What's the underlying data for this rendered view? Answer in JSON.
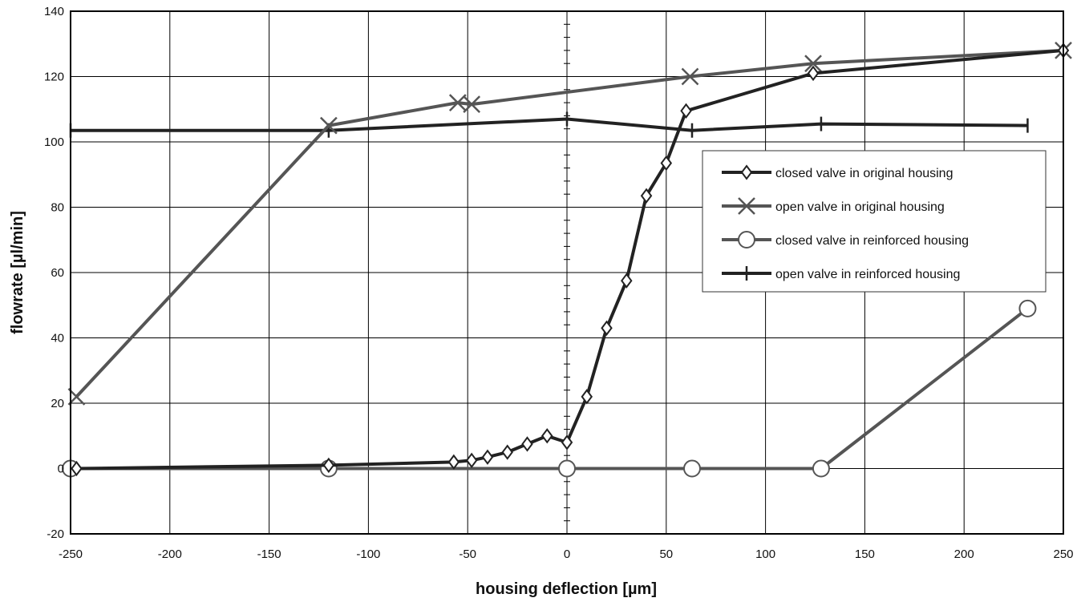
{
  "chart_data": {
    "type": "line",
    "title": "",
    "xlabel": "housing deflection [µm]",
    "ylabel": "flowrate [µl/min]",
    "xlim": [
      -250,
      250
    ],
    "ylim": [
      -20,
      140
    ],
    "xticks": [
      -250,
      -200,
      -150,
      -100,
      -50,
      0,
      50,
      100,
      150,
      200,
      250
    ],
    "yticks": [
      -20,
      0,
      20,
      40,
      60,
      80,
      100,
      120,
      140
    ],
    "xtick_labels": [
      "-250",
      "-200",
      "-150",
      "-100",
      "-50",
      "0",
      "50",
      "100",
      "150",
      "200",
      "250"
    ],
    "ytick_labels": [
      "-20",
      "0",
      "20",
      "40",
      "60",
      "80",
      "100",
      "120",
      "140"
    ],
    "grid": true,
    "legend_position": "right",
    "series": [
      {
        "name": "closed valve in original housing",
        "marker": "diamond",
        "color": "#222222",
        "points": [
          [
            -247,
            0
          ],
          [
            -120,
            1
          ],
          [
            -57,
            2
          ],
          [
            -48,
            2.5
          ],
          [
            -40,
            3.5
          ],
          [
            -30,
            5
          ],
          [
            -20,
            7.5
          ],
          [
            -10,
            10
          ],
          [
            0,
            8
          ],
          [
            10,
            22
          ],
          [
            20,
            43
          ],
          [
            30,
            57.5
          ],
          [
            40,
            83.5
          ],
          [
            50,
            93.5
          ],
          [
            60,
            109.5
          ],
          [
            124,
            121
          ],
          [
            250,
            128
          ]
        ]
      },
      {
        "name": "open valve in original housing",
        "marker": "x",
        "color": "#555555",
        "points": [
          [
            -247,
            22
          ],
          [
            -120,
            105
          ],
          [
            -55,
            112
          ],
          [
            -48,
            111.5
          ],
          [
            62,
            120
          ],
          [
            124,
            124
          ],
          [
            250,
            128
          ]
        ]
      },
      {
        "name": "closed valve in reinforced housing",
        "marker": "circle",
        "color": "#555555",
        "points": [
          [
            -250,
            0
          ],
          [
            -120,
            0
          ],
          [
            0,
            0
          ],
          [
            63,
            0
          ],
          [
            128,
            0
          ],
          [
            232,
            49
          ]
        ]
      },
      {
        "name": "open valve in reinforced housing",
        "marker": "plus",
        "color": "#222222",
        "points": [
          [
            -250,
            103.5
          ],
          [
            -120,
            103.5
          ],
          [
            0,
            107
          ],
          [
            63,
            103.5
          ],
          [
            128,
            105.5
          ],
          [
            232,
            105
          ]
        ]
      }
    ]
  }
}
